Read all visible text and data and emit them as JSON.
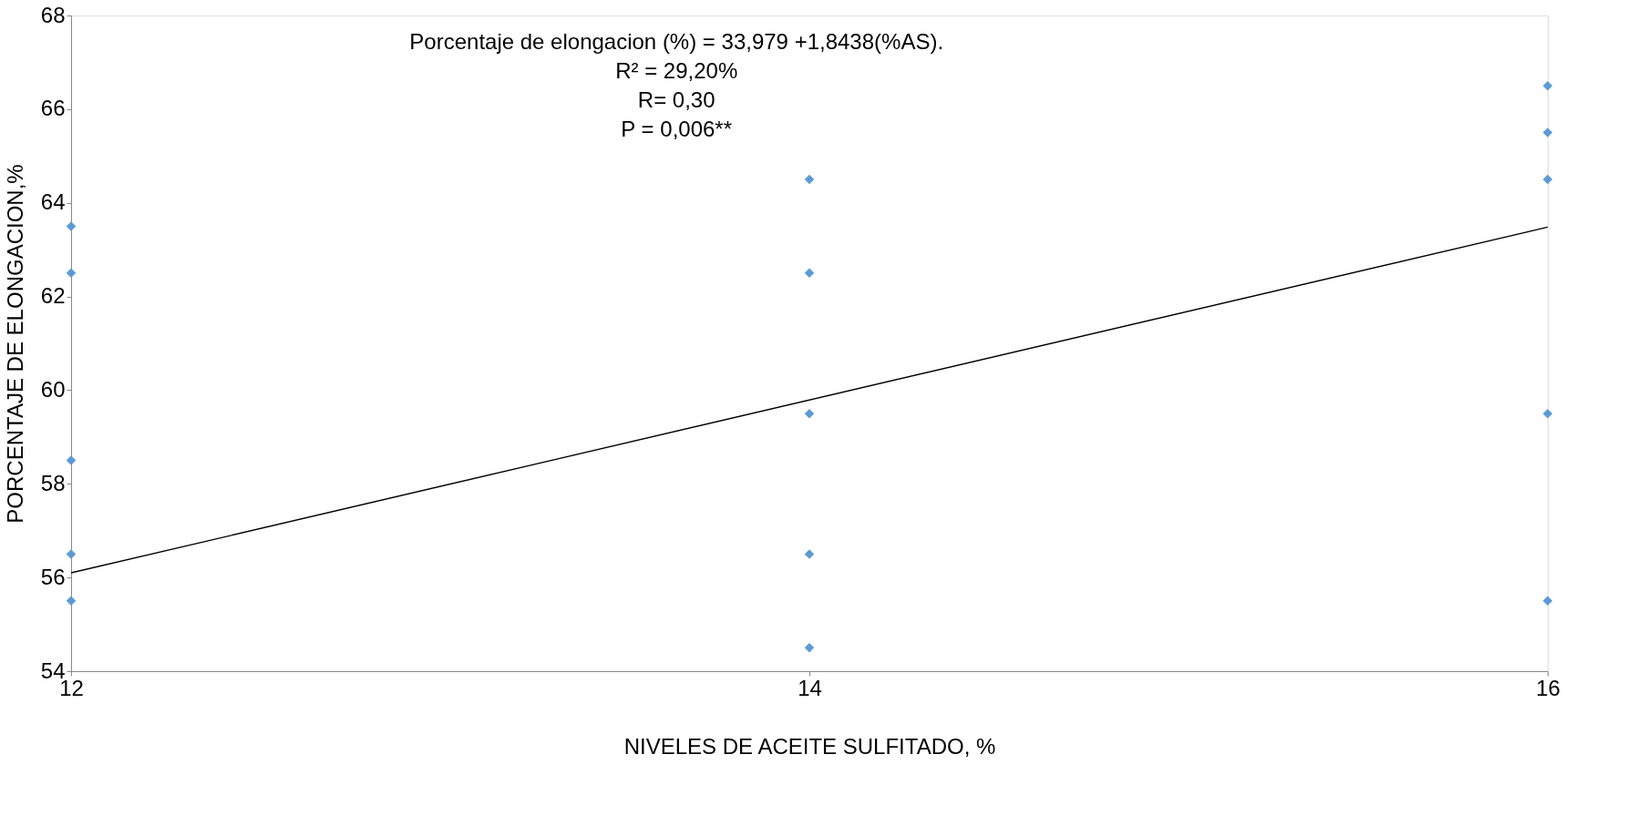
{
  "chart_data": {
    "type": "scatter",
    "xlabel": "NIVELES DE ACEITE SULFITADO, %",
    "ylabel": "PORCENTAJE DE ELONGACION,%",
    "annotations": [
      "Porcentaje de elongacion (%)  =  33,979 +1,8438(%AS).",
      "R² = 29,20%",
      "R=  0,30",
      "P = 0,006**"
    ],
    "xlim": [
      12,
      16
    ],
    "xticks": [
      12,
      14,
      16
    ],
    "ylim": [
      54,
      68
    ],
    "yticks": [
      54,
      56,
      58,
      60,
      62,
      64,
      66,
      68
    ],
    "grid": false,
    "series": [
      {
        "type": "scatter",
        "color": "#5b9bd5",
        "marker": "diamond",
        "x": [
          12,
          12,
          12,
          12,
          12,
          14,
          14,
          14,
          14,
          14,
          16,
          16,
          16,
          16,
          16
        ],
        "values": [
          63.5,
          62.5,
          58.5,
          56.5,
          55.5,
          64.5,
          62.5,
          59.5,
          56.5,
          54.5,
          66.5,
          65.5,
          64.5,
          59.5,
          55.5
        ]
      },
      {
        "type": "line",
        "color": "#000000",
        "marker": "none",
        "x": [
          12,
          16
        ],
        "values": [
          56.1,
          63.48
        ],
        "line_style": "solid"
      }
    ]
  }
}
